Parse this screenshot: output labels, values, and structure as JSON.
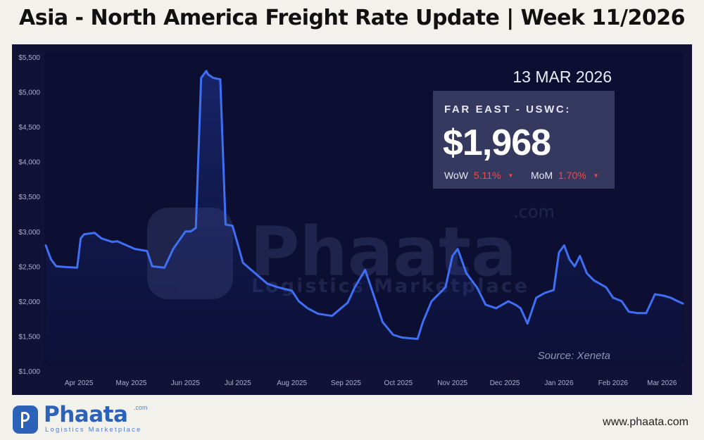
{
  "title": "Asia - North America Freight Rate Update | Week 11/2026",
  "date_label": "13 MAR 2026",
  "card": {
    "label": "FAR EAST - USWC:",
    "value": "$1,968",
    "wow_label": "WoW",
    "wow_value": "5.11%",
    "mom_label": "MoM",
    "mom_value": "1.70%",
    "change_direction": "down"
  },
  "source": "Source: Xeneta",
  "watermark": {
    "name": "Phaata",
    "com": ".com",
    "tagline": "Logistics Marketplace"
  },
  "footer": {
    "logo_name": "Phaata",
    "logo_com": ".com",
    "logo_tagline": "Logistics Marketplace",
    "website": "www.phaata.com"
  },
  "colors": {
    "line": "#3f6ff5",
    "panel": "#111236",
    "negative": "#ef4a4a",
    "brand": "#2c62b8"
  },
  "chart_data": {
    "type": "line",
    "title": "",
    "xlabel": "",
    "ylabel": "",
    "ylim": [
      1000,
      5500
    ],
    "yticks": [
      "$1,000",
      "$1,500",
      "$2,000",
      "$2,500",
      "$3,000",
      "$3,500",
      "$4,000",
      "$4,500",
      "$5,000",
      "$5,500"
    ],
    "ytick_values": [
      1000,
      1500,
      2000,
      2500,
      3000,
      3500,
      4000,
      4500,
      5000,
      5500
    ],
    "xticks": [
      "Apr 2025",
      "May 2025",
      "Jun 2025",
      "Jul 2025",
      "Aug 2025",
      "Sep 2025",
      "Oct 2025",
      "Nov 2025",
      "Dec 2025",
      "Jan 2026",
      "Feb 2026",
      "Mar 2026"
    ],
    "xtick_dates": [
      "2025-04-01",
      "2025-05-01",
      "2025-06-01",
      "2025-07-01",
      "2025-08-01",
      "2025-09-01",
      "2025-10-01",
      "2025-11-01",
      "2025-12-01",
      "2026-01-01",
      "2026-02-01",
      "2026-03-01"
    ],
    "x_range": [
      "2025-03-13",
      "2026-03-13"
    ],
    "grid": false,
    "legend": "none",
    "series": [
      {
        "x": [
          "2025-03-13",
          "2025-03-16",
          "2025-03-19",
          "2025-03-24",
          "2025-03-31",
          "2025-04-02",
          "2025-04-04",
          "2025-04-10",
          "2025-04-14",
          "2025-04-20",
          "2025-04-23",
          "2025-05-03",
          "2025-05-10",
          "2025-05-13",
          "2025-05-20",
          "2025-05-25",
          "2025-06-01",
          "2025-06-04",
          "2025-06-07",
          "2025-06-10",
          "2025-06-13",
          "2025-06-14",
          "2025-06-17",
          "2025-06-21",
          "2025-06-24",
          "2025-06-28",
          "2025-07-04",
          "2025-07-11",
          "2025-07-18",
          "2025-07-24",
          "2025-08-01",
          "2025-08-05",
          "2025-08-10",
          "2025-08-16",
          "2025-08-24",
          "2025-09-02",
          "2025-09-06",
          "2025-09-12",
          "2025-09-16",
          "2025-09-22",
          "2025-09-28",
          "2025-10-03",
          "2025-10-07",
          "2025-10-12",
          "2025-10-15",
          "2025-10-20",
          "2025-10-28",
          "2025-11-01",
          "2025-11-04",
          "2025-11-09",
          "2025-11-15",
          "2025-11-20",
          "2025-11-26",
          "2025-12-03",
          "2025-12-07",
          "2025-12-10",
          "2025-12-14",
          "2025-12-19",
          "2025-12-24",
          "2025-12-29",
          "2026-01-01",
          "2026-01-04",
          "2026-01-07",
          "2026-01-10",
          "2026-01-13",
          "2026-01-17",
          "2026-01-21",
          "2026-01-28",
          "2026-02-01",
          "2026-02-06",
          "2026-02-10",
          "2026-02-15",
          "2026-02-20",
          "2026-02-25",
          "2026-03-02",
          "2026-03-06",
          "2026-03-10",
          "2026-03-13"
        ],
        "values": [
          2800,
          2600,
          2500,
          2490,
          2480,
          2900,
          2960,
          2980,
          2900,
          2850,
          2860,
          2750,
          2720,
          2500,
          2480,
          2750,
          3000,
          3000,
          3050,
          5200,
          5300,
          5250,
          5200,
          5180,
          3100,
          3080,
          2550,
          2400,
          2250,
          2200,
          2150,
          2000,
          1900,
          1820,
          1790,
          1980,
          2200,
          2450,
          2150,
          1700,
          1520,
          1480,
          1470,
          1460,
          1700,
          2000,
          2200,
          2650,
          2750,
          2400,
          2200,
          1950,
          1900,
          2000,
          1950,
          1900,
          1680,
          2050,
          2120,
          2160,
          2700,
          2800,
          2600,
          2500,
          2650,
          2400,
          2300,
          2200,
          2050,
          2000,
          1850,
          1830,
          1830,
          2100,
          2080,
          2050,
          2000,
          1968
        ]
      }
    ]
  }
}
